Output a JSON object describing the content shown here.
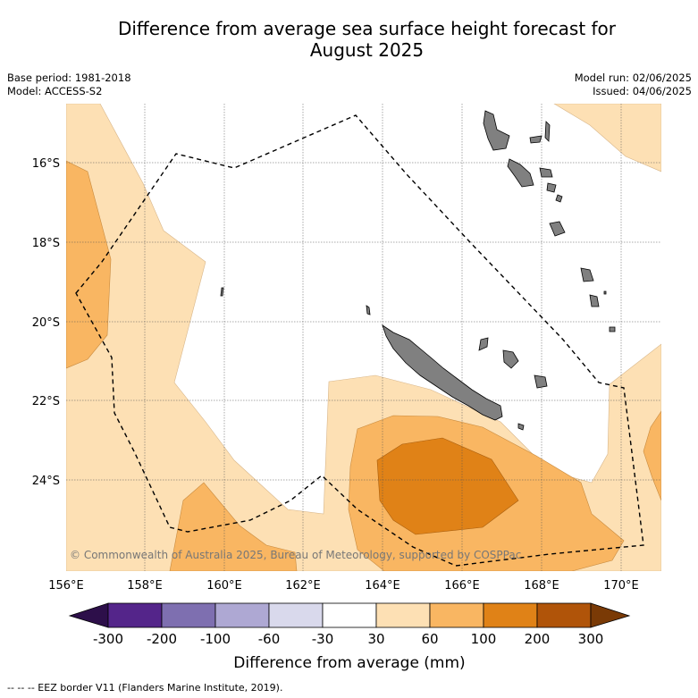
{
  "title_line1": "Difference from average sea surface height forecast for",
  "title_line2": "August 2025",
  "meta_left": {
    "base_period": "Base period: 1981-2018",
    "model": "Model: ACCESS-S2"
  },
  "meta_right": {
    "model_run": "Model run: 02/06/2025",
    "issued": "Issued: 04/06/2025"
  },
  "map": {
    "lon_range": [
      156,
      171
    ],
    "lat_range": [
      -26.3,
      -14.3
    ],
    "lat_ticks": [
      "16°S",
      "18°S",
      "20°S",
      "22°S",
      "24°S"
    ],
    "lon_ticks": [
      "156°E",
      "158°E",
      "160°E",
      "162°E",
      "164°E",
      "166°E",
      "168°E",
      "170°E"
    ],
    "copyright": "© Commonwealth of Australia 2025, Bureau of Meteorology, supported by COSPPac",
    "land_color": "#808080",
    "eez_border": "dashed black"
  },
  "colorbar": {
    "ticks": [
      "-300",
      "-200",
      "-100",
      "-60",
      "-30",
      "30",
      "60",
      "100",
      "200",
      "300"
    ],
    "colors": [
      "#2d0f4a",
      "#54258a",
      "#7e6fb0",
      "#aea8d3",
      "#d9d9ec",
      "#ffffff",
      "#fde0b4",
      "#f9b662",
      "#e08217",
      "#b05409",
      "#7a3a06"
    ],
    "title": "Difference from average (mm)"
  },
  "footnote": "--  --  -- EEZ border V11 (Flanders Marine Institute, 2019)."
}
